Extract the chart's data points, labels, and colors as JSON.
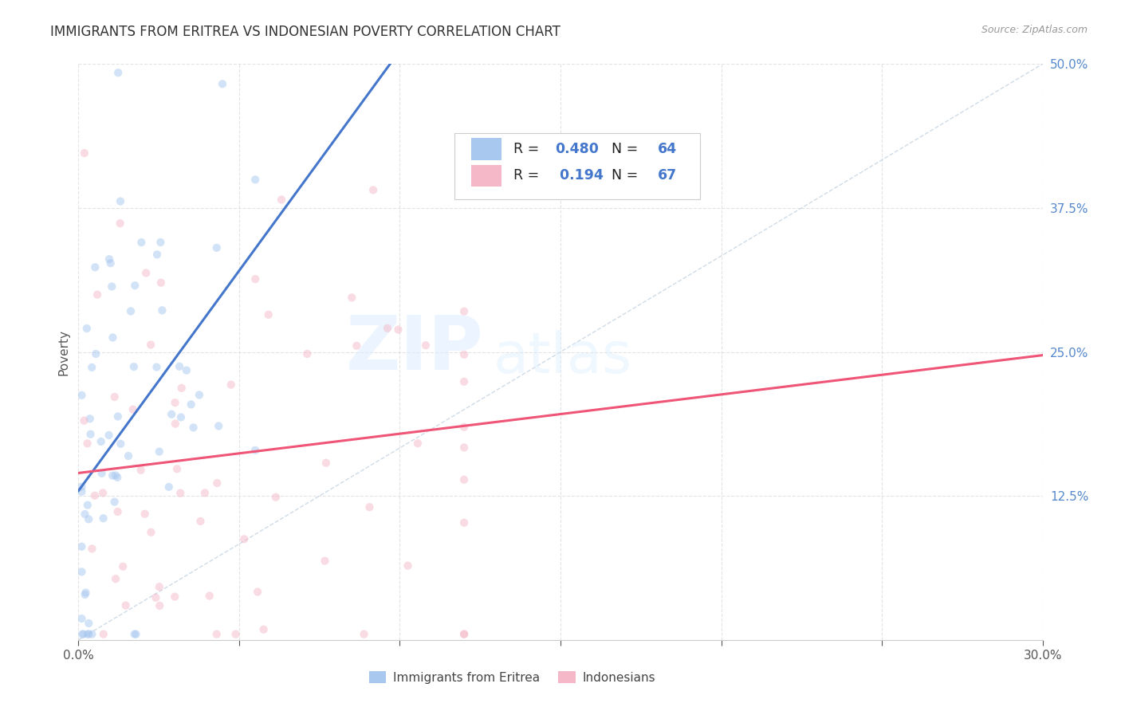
{
  "title": "IMMIGRANTS FROM ERITREA VS INDONESIAN POVERTY CORRELATION CHART",
  "source": "Source: ZipAtlas.com",
  "ylabel": "Poverty",
  "xlim": [
    0.0,
    0.3
  ],
  "ylim": [
    0.0,
    0.5
  ],
  "xticks": [
    0.0,
    0.05,
    0.1,
    0.15,
    0.2,
    0.25,
    0.3
  ],
  "xtick_labels": [
    "0.0%",
    "",
    "",
    "",
    "",
    "",
    "30.0%"
  ],
  "yticks": [
    0.0,
    0.125,
    0.25,
    0.375,
    0.5
  ],
  "ytick_labels": [
    "",
    "12.5%",
    "25.0%",
    "37.5%",
    "50.0%"
  ],
  "color_eritrea": "#A8C8F0",
  "color_indonesian": "#F5B8C8",
  "color_eritrea_line": "#4477CC",
  "color_indonesian_line": "#EE5577",
  "color_diagonal": "#BBCCDD",
  "R_eritrea": 0.48,
  "N_eritrea": 64,
  "R_indonesian": 0.194,
  "N_indonesian": 67,
  "legend_label_eritrea": "Immigrants from Eritrea",
  "legend_label_indonesian": "Indonesians",
  "watermark_zip": "ZIP",
  "watermark_atlas": "atlas",
  "background_color": "#FFFFFF",
  "grid_color": "#DDDDDD",
  "title_fontsize": 12,
  "axis_label_fontsize": 11,
  "tick_fontsize": 11,
  "scatter_alpha": 0.5,
  "scatter_size": 55
}
